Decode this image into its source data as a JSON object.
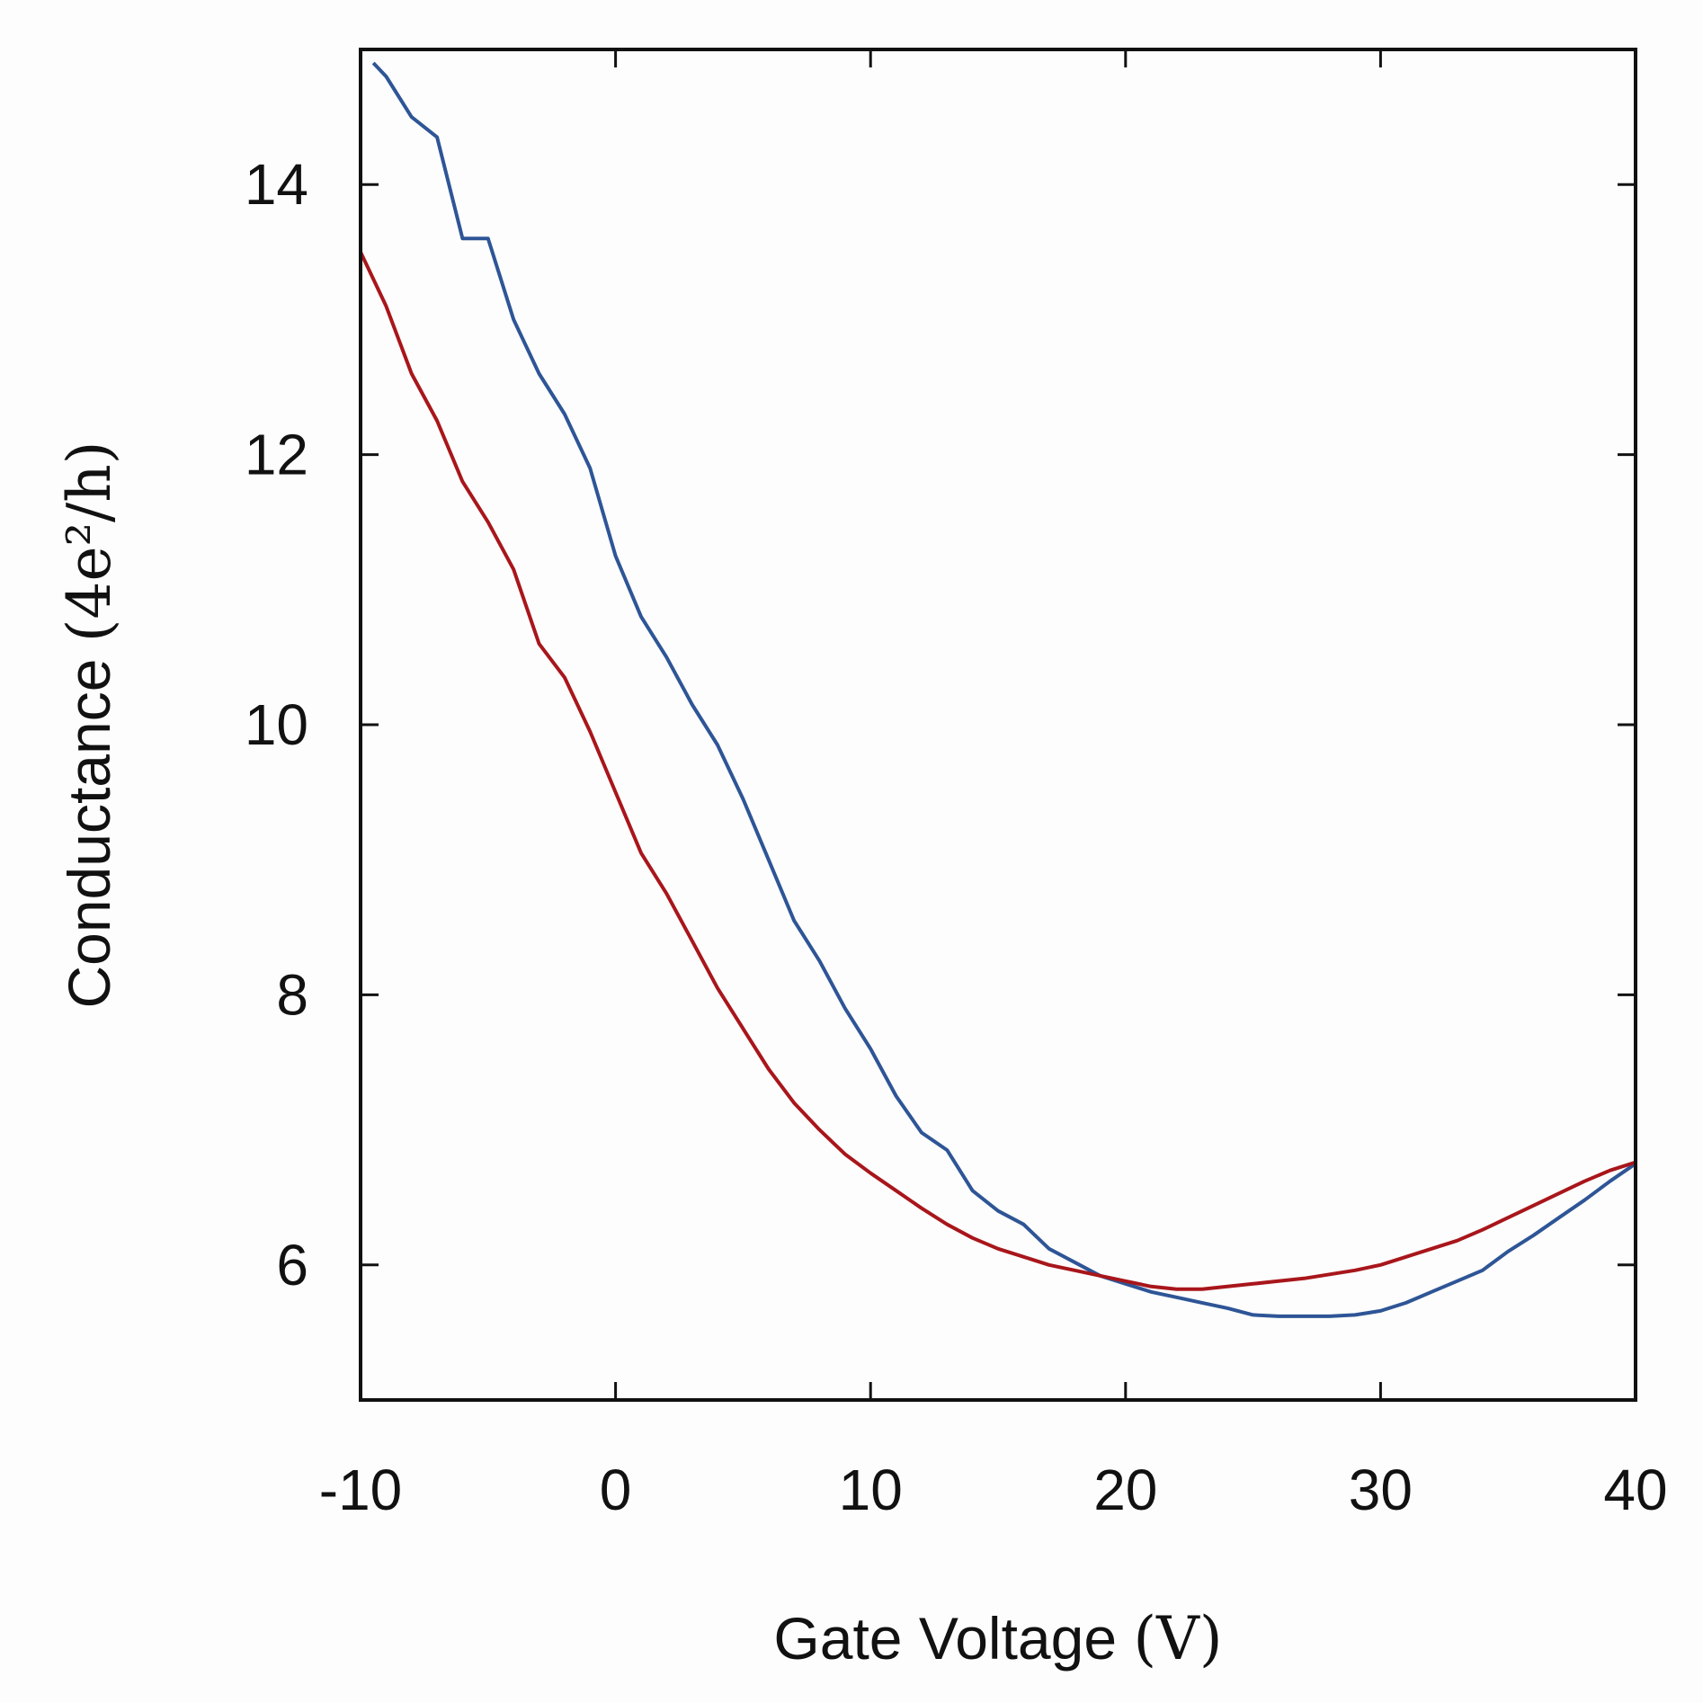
{
  "chart_data": {
    "type": "line",
    "xlabel": "Gate Voltage",
    "xlabel_unit": "(V)",
    "ylabel": "Conductance",
    "ylabel_unit": "(4e²/h)",
    "xlim": [
      -10,
      40
    ],
    "ylim": [
      5,
      15
    ],
    "xticks": [
      -10,
      0,
      10,
      20,
      30,
      40
    ],
    "yticks": [
      6,
      8,
      10,
      12,
      14
    ],
    "grid": false,
    "series": [
      {
        "name": "blue trace",
        "color": "#2e5596",
        "x": [
          -9.5,
          -9.0,
          -8.0,
          -7.0,
          -6.0,
          -5.0,
          -4.0,
          -3.0,
          -2.0,
          -1.0,
          0.0,
          1.0,
          2.0,
          3.0,
          4.0,
          5.0,
          6.0,
          7.0,
          8.0,
          9.0,
          10.0,
          11.0,
          12.0,
          13.0,
          14.0,
          15.0,
          16.0,
          17.0,
          18.0,
          19.0,
          20.0,
          21.0,
          22.0,
          23.0,
          24.0,
          25.0,
          26.0,
          27.0,
          28.0,
          29.0,
          30.0,
          31.0,
          32.0,
          33.0,
          34.0,
          35.0,
          36.0,
          37.0,
          38.0,
          39.0,
          40.0
        ],
        "y": [
          14.9,
          14.8,
          14.5,
          14.35,
          13.6,
          13.6,
          13.0,
          12.6,
          12.3,
          11.9,
          11.25,
          10.8,
          10.5,
          10.15,
          9.85,
          9.45,
          9.0,
          8.55,
          8.25,
          7.9,
          7.6,
          7.25,
          6.98,
          6.85,
          6.55,
          6.4,
          6.3,
          6.12,
          6.02,
          5.92,
          5.86,
          5.8,
          5.76,
          5.72,
          5.68,
          5.63,
          5.62,
          5.62,
          5.62,
          5.63,
          5.66,
          5.72,
          5.8,
          5.88,
          5.96,
          6.1,
          6.22,
          6.35,
          6.48,
          6.62,
          6.75
        ]
      },
      {
        "name": "red trace",
        "color": "#a8161b",
        "x": [
          -10.0,
          -9.0,
          -8.0,
          -7.0,
          -6.0,
          -5.0,
          -4.0,
          -3.0,
          -2.0,
          -1.0,
          0.0,
          1.0,
          2.0,
          3.0,
          4.0,
          5.0,
          6.0,
          7.0,
          8.0,
          9.0,
          10.0,
          11.0,
          12.0,
          13.0,
          14.0,
          15.0,
          16.0,
          17.0,
          18.0,
          19.0,
          20.0,
          21.0,
          22.0,
          23.0,
          24.0,
          25.0,
          26.0,
          27.0,
          28.0,
          29.0,
          30.0,
          31.0,
          32.0,
          33.0,
          34.0,
          35.0,
          36.0,
          37.0,
          38.0,
          39.0,
          40.0
        ],
        "y": [
          13.5,
          13.1,
          12.6,
          12.25,
          11.8,
          11.5,
          11.15,
          10.6,
          10.35,
          9.95,
          9.5,
          9.05,
          8.75,
          8.4,
          8.05,
          7.75,
          7.45,
          7.2,
          7.0,
          6.82,
          6.68,
          6.55,
          6.42,
          6.3,
          6.2,
          6.12,
          6.06,
          6.0,
          5.96,
          5.92,
          5.88,
          5.84,
          5.82,
          5.82,
          5.84,
          5.86,
          5.88,
          5.9,
          5.93,
          5.96,
          6.0,
          6.06,
          6.12,
          6.18,
          6.26,
          6.35,
          6.44,
          6.53,
          6.62,
          6.7,
          6.76
        ]
      }
    ]
  }
}
